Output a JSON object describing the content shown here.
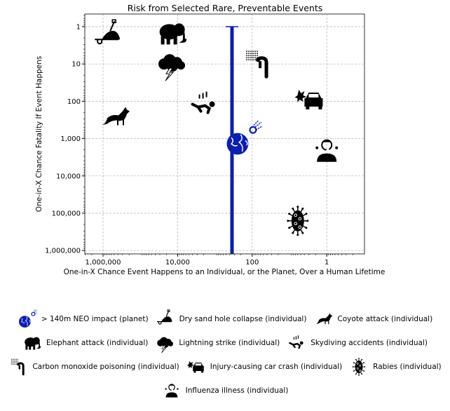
{
  "chart_data": {
    "type": "scatter",
    "title": "Risk from Selected Rare, Preventable Events",
    "xlabel": "One-in-X Chance Event Happens to an Individual, or the Planet, Over a Human Lifetime",
    "ylabel": "One-in-X Chance Fatality If Event Happens",
    "xscale": "log",
    "yscale": "log",
    "x_reversed": true,
    "y_reversed": true,
    "xlim": [
      3000000,
      0.1
    ],
    "ylim": [
      0.45,
      1300000
    ],
    "grid": true,
    "xticks": [
      {
        "value": 1000000,
        "label": "1,000,000"
      },
      {
        "value": 10000,
        "label": "10,000"
      },
      {
        "value": 100,
        "label": "100"
      },
      {
        "value": 1,
        "label": "1"
      }
    ],
    "yticks": [
      {
        "value": 1,
        "label": "1"
      },
      {
        "value": 10,
        "label": "10"
      },
      {
        "value": 100,
        "label": "100"
      },
      {
        "value": 1000,
        "label": "1,000"
      },
      {
        "value": 10000,
        "label": "10,000"
      },
      {
        "value": 100000,
        "label": "100,000"
      },
      {
        "value": 1000000,
        "label": "1,000,000"
      }
    ],
    "legend_placement": "below",
    "points": [
      {
        "name": "> 140m NEO impact (planet)",
        "icon": "earth-meteor-icon",
        "x": 340,
        "y": 1600,
        "y_range": [
          1,
          1000000
        ],
        "color": "#0a1fb4"
      },
      {
        "name": "Dry sand hole collapse (individual)",
        "icon": "sand-hole-icon",
        "x": 700000,
        "y": 1.7
      },
      {
        "name": "Coyote attack (individual)",
        "icon": "coyote-icon",
        "x": 500000,
        "y": 260
      },
      {
        "name": "Elephant attack (individual)",
        "icon": "elephant-icon",
        "x": 14000,
        "y": 1.5
      },
      {
        "name": "Lightning strike (individual)",
        "icon": "lightning-cloud-icon",
        "x": 15000,
        "y": 10
      },
      {
        "name": "Skydiving accidents (individual)",
        "icon": "skydiver-icon",
        "x": 2000,
        "y": 120
      },
      {
        "name": "Carbon monoxide poisoning (individual)",
        "icon": "carbon-monoxide-icon",
        "x": 70,
        "y": 10
      },
      {
        "name": "Injury-causing car crash (individual)",
        "icon": "car-crash-icon",
        "x": 2.8,
        "y": 90
      },
      {
        "name": "Rabies (individual)",
        "icon": "virus-icon",
        "x": 6,
        "y": 160000
      },
      {
        "name": "Influenza illness (individual)",
        "icon": "sick-person-icon",
        "x": 1,
        "y": 2100
      }
    ]
  },
  "colors": {
    "neo": "#0a1fb4",
    "icons": "#000000",
    "grid": "#b0b0b0"
  }
}
